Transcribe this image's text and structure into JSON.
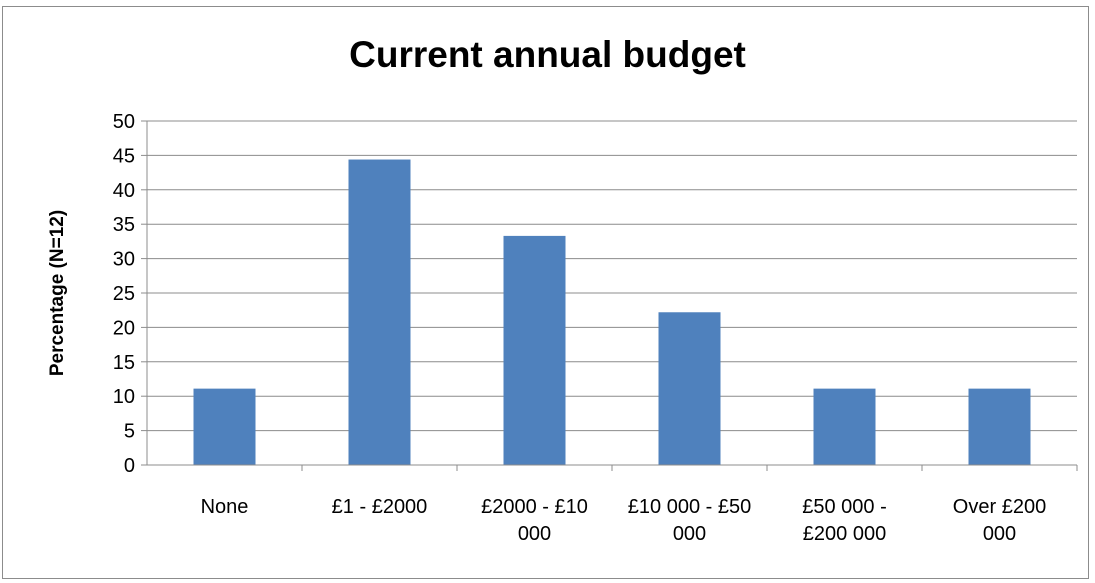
{
  "chart_data": {
    "type": "bar",
    "title": "Current annual budget",
    "xlabel": "",
    "ylabel": "Percentage (N=12)",
    "ylim": [
      0,
      50
    ],
    "yticks": [
      0,
      5,
      10,
      15,
      20,
      25,
      30,
      35,
      40,
      45,
      50
    ],
    "grid": true,
    "categories": [
      [
        "None"
      ],
      [
        "£1 - £2000"
      ],
      [
        "£2000 - £10",
        "000"
      ],
      [
        "£10 000 - £50",
        "000"
      ],
      [
        "£50 000 -",
        "£200 000"
      ],
      [
        "Over £200",
        "000"
      ]
    ],
    "values": [
      11.1,
      44.4,
      33.3,
      22.2,
      11.1,
      11.1
    ],
    "bar_color": "#4f81bd"
  }
}
